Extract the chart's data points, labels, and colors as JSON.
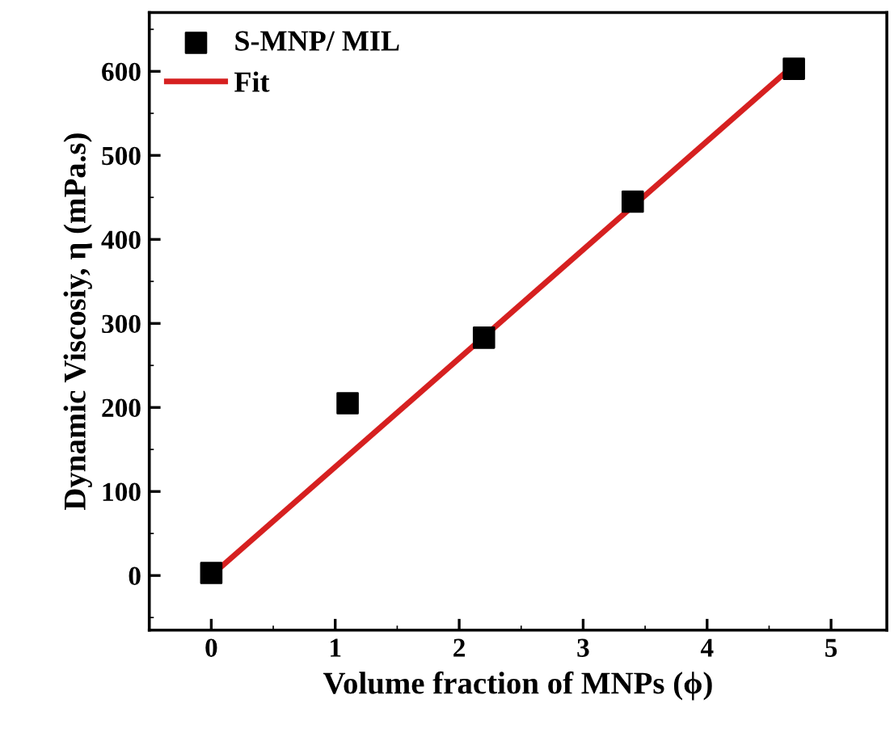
{
  "chart_data": {
    "type": "scatter",
    "xlabel": "Volume fraction of MNPs (ϕ)",
    "ylabel": "Dynamic Viscosiy, η (mPa.s)",
    "x": [
      0,
      1.1,
      2.2,
      3.4,
      4.7
    ],
    "series": [
      {
        "name": "S-MNP/ MIL",
        "color": "#000000",
        "marker": "square",
        "values": [
          3,
          205,
          283,
          445,
          603
        ]
      },
      {
        "name": "Fit",
        "type": "line",
        "color": "#d62020",
        "marker": "none",
        "x": [
          0,
          4.72
        ],
        "values": [
          0,
          610
        ]
      }
    ],
    "xlim": [
      -0.5,
      5.45
    ],
    "ylim": [
      -65,
      670
    ],
    "xticks": [
      0,
      1,
      2,
      3,
      4,
      5
    ],
    "yticks": [
      0,
      100,
      200,
      300,
      400,
      500,
      600
    ],
    "legend": "top left",
    "grid": false
  }
}
